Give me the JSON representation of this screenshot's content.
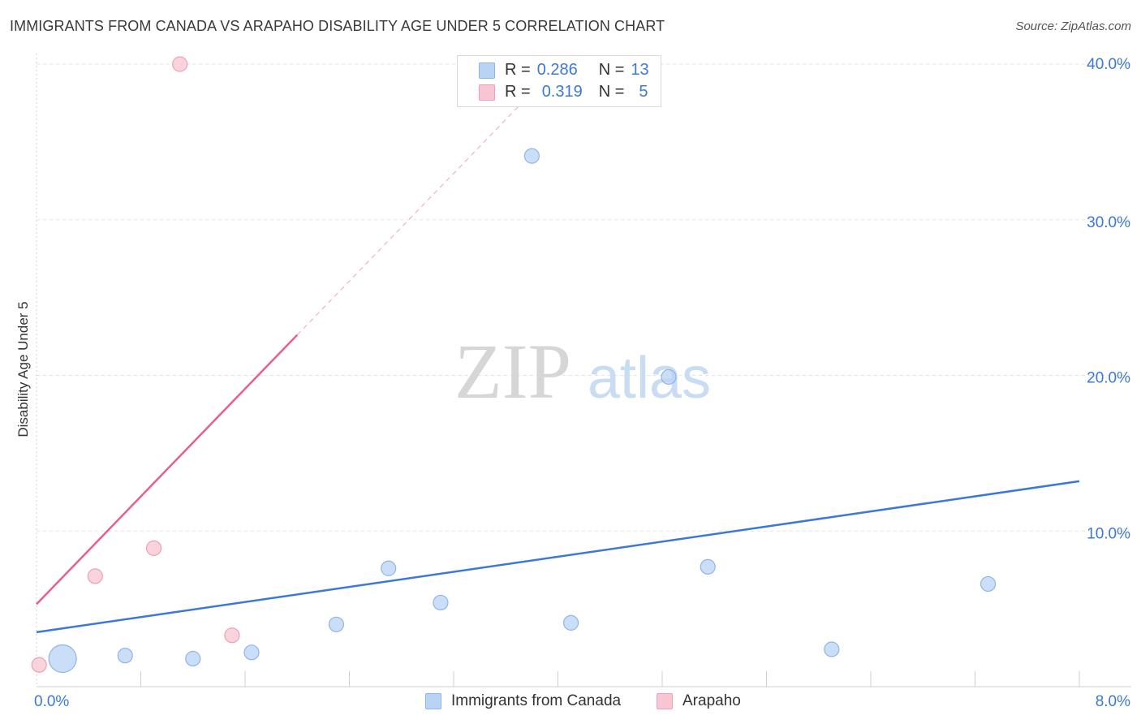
{
  "title": "IMMIGRANTS FROM CANADA VS ARAPAHO DISABILITY AGE UNDER 5 CORRELATION CHART",
  "source": "Source: ZipAtlas.com",
  "watermark": {
    "zip": "ZIP",
    "atlas": "atlas"
  },
  "legend": {
    "canada": {
      "r_label": "R =",
      "r_value": "0.286",
      "n_label": "N =",
      "n_value": "13"
    },
    "arapaho": {
      "r_label": "R =",
      "r_value": "0.319",
      "n_label": "N =",
      "n_value": "5"
    }
  },
  "colors": {
    "canada_fill": "#b9d3f5",
    "canada_stroke": "#8fb4e6",
    "canada_line": "#3b78d8",
    "arapaho_fill": "#f8c5d2",
    "arapaho_stroke": "#ef9fb5",
    "arapaho_line": "#e8608a",
    "grid": "#e3e3e3",
    "tick_label": "#3b78d8"
  },
  "chart_data": {
    "type": "scatter",
    "title": "IMMIGRANTS FROM CANADA VS ARAPAHO DISABILITY AGE UNDER 5 CORRELATION CHART",
    "xlabel": "",
    "ylabel": "Disability Age Under 5",
    "xlim": [
      0,
      8
    ],
    "ylim": [
      0,
      40
    ],
    "x_tick_labels": [
      "0.0%",
      "8.0%"
    ],
    "y_ticks": [
      10,
      20,
      30,
      40
    ],
    "y_tick_labels": [
      "10.0%",
      "20.0%",
      "30.0%",
      "40.0%"
    ],
    "grid": true,
    "series": [
      {
        "name": "Immigrants from Canada",
        "points": [
          {
            "x": 0.2,
            "y": 1.8,
            "size": 3
          },
          {
            "x": 0.68,
            "y": 2.0,
            "size": 1
          },
          {
            "x": 1.2,
            "y": 1.8,
            "size": 1
          },
          {
            "x": 1.65,
            "y": 2.2,
            "size": 1
          },
          {
            "x": 2.3,
            "y": 4.0,
            "size": 1
          },
          {
            "x": 2.7,
            "y": 7.6,
            "size": 1
          },
          {
            "x": 3.1,
            "y": 5.4,
            "size": 1
          },
          {
            "x": 3.8,
            "y": 34.1,
            "size": 1
          },
          {
            "x": 4.1,
            "y": 4.1,
            "size": 1
          },
          {
            "x": 4.85,
            "y": 19.9,
            "size": 1
          },
          {
            "x": 5.15,
            "y": 7.7,
            "size": 1
          },
          {
            "x": 6.1,
            "y": 2.4,
            "size": 1
          },
          {
            "x": 7.3,
            "y": 6.6,
            "size": 1
          }
        ],
        "trend": {
          "x": [
            0,
            8
          ],
          "y": [
            3.5,
            13.2
          ],
          "style": "solid"
        }
      },
      {
        "name": "Arapaho",
        "points": [
          {
            "x": 0.02,
            "y": 1.4,
            "size": 1
          },
          {
            "x": 0.45,
            "y": 7.1,
            "size": 1
          },
          {
            "x": 0.9,
            "y": 8.9,
            "size": 1
          },
          {
            "x": 1.1,
            "y": 40.0,
            "size": 1
          },
          {
            "x": 1.5,
            "y": 3.3,
            "size": 1
          }
        ],
        "trend": {
          "x": [
            0,
            2.0
          ],
          "y": [
            5.3,
            22.6
          ],
          "style": "solid",
          "dashed_extension_to_x": 3.8
        }
      }
    ]
  },
  "bottom_legend": [
    {
      "label": "Immigrants from Canada"
    },
    {
      "label": "Arapaho"
    }
  ]
}
